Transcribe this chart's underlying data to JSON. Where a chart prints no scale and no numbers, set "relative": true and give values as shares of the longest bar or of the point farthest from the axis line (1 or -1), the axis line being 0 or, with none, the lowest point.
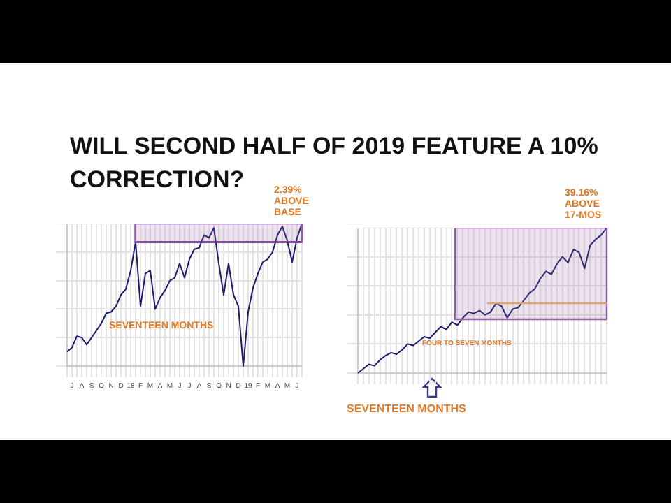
{
  "chart_data": [
    {
      "type": "line",
      "title": "WILL SECOND HALF OF 2019 FEATURE A 10% CORRECTION?",
      "relative": true,
      "grid": true,
      "tick_labels": "x",
      "marker": "none",
      "color": "#1c1c6b",
      "categories": [
        null,
        "J",
        null,
        "A",
        null,
        "S",
        null,
        "O",
        null,
        "N",
        null,
        "D",
        null,
        "18",
        null,
        "F",
        null,
        "M",
        null,
        "A",
        null,
        "M",
        null,
        "J",
        null,
        "J",
        null,
        "A",
        null,
        "S",
        null,
        "O",
        null,
        "N",
        null,
        "D",
        null,
        "19",
        null,
        "F",
        null,
        "M",
        null,
        "A",
        null,
        "M",
        null,
        "J",
        null
      ],
      "values": [
        0.1,
        0.13,
        0.21,
        0.2,
        0.15,
        0.2,
        0.25,
        0.3,
        0.37,
        0.38,
        0.42,
        0.5,
        0.54,
        0.67,
        0.87,
        0.42,
        0.65,
        0.67,
        0.4,
        0.48,
        0.53,
        0.6,
        0.62,
        0.72,
        0.62,
        0.75,
        0.82,
        0.83,
        0.92,
        0.9,
        0.97,
        0.72,
        0.5,
        0.72,
        0.5,
        0.42,
        0,
        0.38,
        0.55,
        0.65,
        0.73,
        0.75,
        0.8,
        0.92,
        0.98,
        0.88,
        0.73,
        0.9,
        1
      ],
      "bands": [
        {
          "axis": "y",
          "from": 0.87,
          "to": 1,
          "color": "#8e5ea2"
        }
      ],
      "ref_lines": [
        {
          "axis": "y",
          "value": 0.87,
          "color": "#6e3f8a"
        }
      ],
      "annotations": [
        "2.39% ABOVE BASE",
        "SEVENTEEN MONTHS"
      ]
    },
    {
      "type": "line",
      "relative": true,
      "grid": true,
      "tick_labels": false,
      "marker": "none",
      "color": "#1c1c6b",
      "categories": [
        null,
        null,
        null,
        null,
        null,
        null,
        null,
        null,
        null,
        null,
        null,
        null,
        null,
        null,
        null,
        null,
        null,
        null,
        null,
        null,
        null,
        null,
        null,
        null,
        null,
        null,
        null,
        null,
        null,
        null,
        null,
        null,
        null,
        null,
        null,
        null,
        null,
        null,
        null,
        null,
        null,
        null,
        null,
        null,
        null,
        null
      ],
      "values": [
        0,
        0.03,
        0.06,
        0.05,
        0.09,
        0.12,
        0.14,
        0.13,
        0.16,
        0.2,
        0.19,
        0.22,
        0.25,
        0.24,
        0.28,
        0.32,
        0.3,
        0.35,
        0.33,
        0.38,
        0.42,
        0.41,
        0.43,
        0.4,
        0.42,
        0.48,
        0.46,
        0.38,
        0.44,
        0.45,
        0.5,
        0.55,
        0.58,
        0.65,
        0.7,
        0.68,
        0.75,
        0.8,
        0.76,
        0.85,
        0.83,
        0.72,
        0.88,
        0.92,
        0.95,
        1
      ],
      "bands": [
        {
          "axis": "y",
          "from": 0.37,
          "to": 1,
          "color": "#8e5ea2"
        }
      ],
      "ref_lines": [
        {
          "axis": "y",
          "value": 0.48,
          "color": "#e8a060"
        }
      ],
      "annotations": [
        "39.16% ABOVE 17-MOS",
        "FOUR TO SEVEN MONTHS",
        "SEVENTEEN MONTHS"
      ]
    }
  ]
}
